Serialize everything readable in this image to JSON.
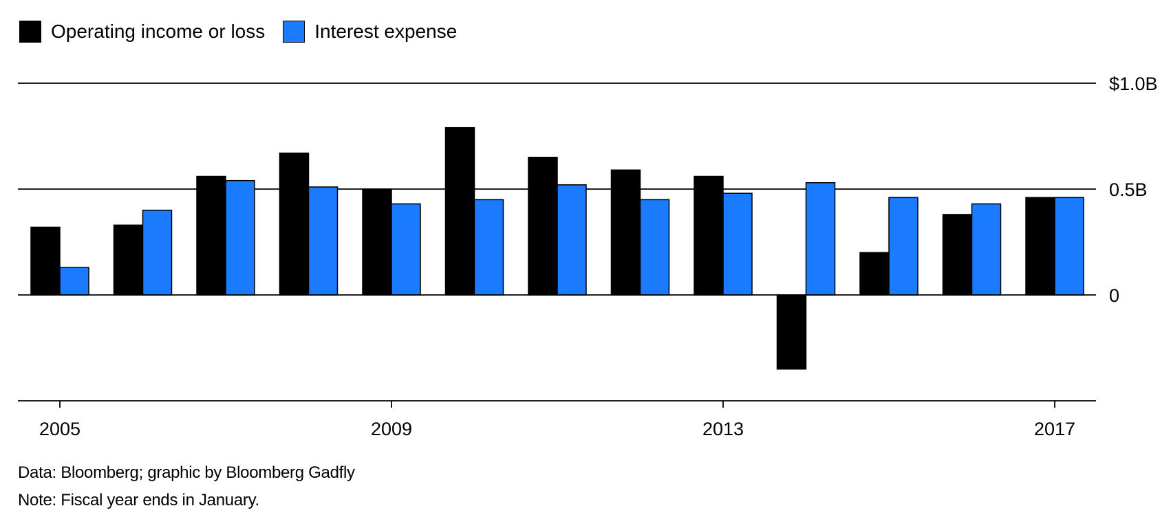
{
  "legend": {
    "items": [
      {
        "label": "Operating income or loss",
        "color": "#000000"
      },
      {
        "label": "Interest expense",
        "color": "#1a7bff"
      }
    ]
  },
  "chart_data": {
    "type": "bar",
    "categories": [
      "2005",
      "2006",
      "2007",
      "2008",
      "2009",
      "2010",
      "2011",
      "2012",
      "2013",
      "2014",
      "2015",
      "2016",
      "2017"
    ],
    "series": [
      {
        "name": "Operating income or loss",
        "color": "#000000",
        "values": [
          0.32,
          0.33,
          0.56,
          0.67,
          0.5,
          0.79,
          0.65,
          0.59,
          0.56,
          -0.35,
          0.2,
          0.38,
          0.46
        ]
      },
      {
        "name": "Interest expense",
        "color": "#1a7bff",
        "values": [
          0.13,
          0.4,
          0.54,
          0.51,
          0.43,
          0.45,
          0.52,
          0.45,
          0.48,
          0.53,
          0.46,
          0.43,
          0.46
        ]
      }
    ],
    "ylim": [
      -0.5,
      1.0
    ],
    "yticks": [
      {
        "value": 1.0,
        "label": "$1.0B"
      },
      {
        "value": 0.5,
        "label": "0.5B"
      },
      {
        "value": 0,
        "label": "0"
      }
    ],
    "xtick_labels": [
      "2005",
      "2009",
      "2013",
      "2017"
    ],
    "grid": true,
    "legend_position": "top-left"
  },
  "footnotes": {
    "source": "Data: Bloomberg; graphic by Bloomberg Gadfly",
    "note": "Note: Fiscal year ends in January."
  }
}
